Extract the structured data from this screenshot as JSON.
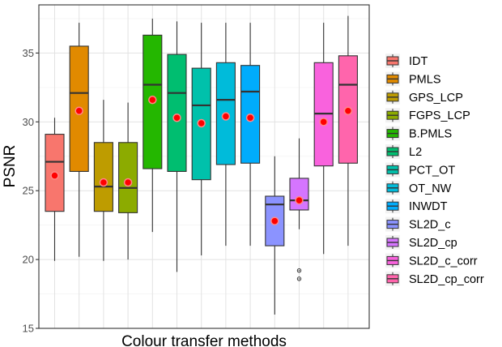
{
  "chart_data": {
    "type": "boxplot",
    "title": "",
    "xlabel": "Colour transfer methods",
    "ylabel": "PSNR",
    "ylim": [
      15,
      38.5
    ],
    "yticks": [
      15,
      20,
      25,
      30,
      35
    ],
    "grid": true,
    "legend_position": "right",
    "series": [
      {
        "name": "IDT",
        "color": "#F8766D",
        "min": 19.9,
        "q1": 23.5,
        "median": 27.1,
        "q3": 29.1,
        "max": 30.3,
        "mean": 26.1,
        "outliers": []
      },
      {
        "name": "PMLS",
        "color": "#E18A00",
        "min": 20.2,
        "q1": 26.4,
        "median": 32.1,
        "q3": 35.5,
        "max": 37.2,
        "mean": 30.8,
        "outliers": []
      },
      {
        "name": "GPS_LCP",
        "color": "#BE9C00",
        "min": 19.9,
        "q1": 23.5,
        "median": 25.3,
        "q3": 28.5,
        "max": 31.6,
        "mean": 25.6,
        "outliers": []
      },
      {
        "name": "FGPS_LCP",
        "color": "#8CAB00",
        "min": 20.0,
        "q1": 23.4,
        "median": 25.2,
        "q3": 28.5,
        "max": 31.4,
        "mean": 25.6,
        "outliers": []
      },
      {
        "name": "B.PMLS",
        "color": "#24B700",
        "min": 22.0,
        "q1": 26.6,
        "median": 32.7,
        "q3": 36.3,
        "max": 37.5,
        "mean": 31.6,
        "outliers": []
      },
      {
        "name": "L2",
        "color": "#00BE70",
        "min": 19.1,
        "q1": 26.4,
        "median": 32.1,
        "q3": 34.9,
        "max": 37.3,
        "mean": 30.3,
        "outliers": []
      },
      {
        "name": "PCT_OT",
        "color": "#00C1AB",
        "min": 20.3,
        "q1": 25.8,
        "median": 31.2,
        "q3": 33.9,
        "max": 37.2,
        "mean": 29.9,
        "outliers": []
      },
      {
        "name": "OT_NW",
        "color": "#00BBDA",
        "min": 21.0,
        "q1": 26.9,
        "median": 31.6,
        "q3": 34.3,
        "max": 37.2,
        "mean": 30.4,
        "outliers": []
      },
      {
        "name": "INWDT",
        "color": "#00ACFC",
        "min": 21.0,
        "q1": 27.0,
        "median": 32.2,
        "q3": 34.1,
        "max": 37.2,
        "mean": 30.3,
        "outliers": []
      },
      {
        "name": "SL2D_c",
        "color": "#8B93FF",
        "min": 16.0,
        "q1": 21.0,
        "median": 24.0,
        "q3": 24.6,
        "max": 27.5,
        "mean": 22.8,
        "outliers": []
      },
      {
        "name": "SL2D_cp",
        "color": "#D575FE",
        "min": 22.2,
        "q1": 23.6,
        "median": 24.3,
        "q3": 25.9,
        "max": 28.8,
        "mean": 24.3,
        "outliers": [
          19.2,
          18.6
        ]
      },
      {
        "name": "SL2D_c_corr",
        "color": "#F962DD",
        "min": 20.4,
        "q1": 26.8,
        "median": 30.6,
        "q3": 34.3,
        "max": 37.2,
        "mean": 30.0,
        "outliers": []
      },
      {
        "name": "SL2D_cp_corr",
        "color": "#FF65AC",
        "min": 21.0,
        "q1": 27.0,
        "median": 32.7,
        "q3": 34.8,
        "max": 37.7,
        "mean": 30.8,
        "outliers": []
      }
    ]
  }
}
